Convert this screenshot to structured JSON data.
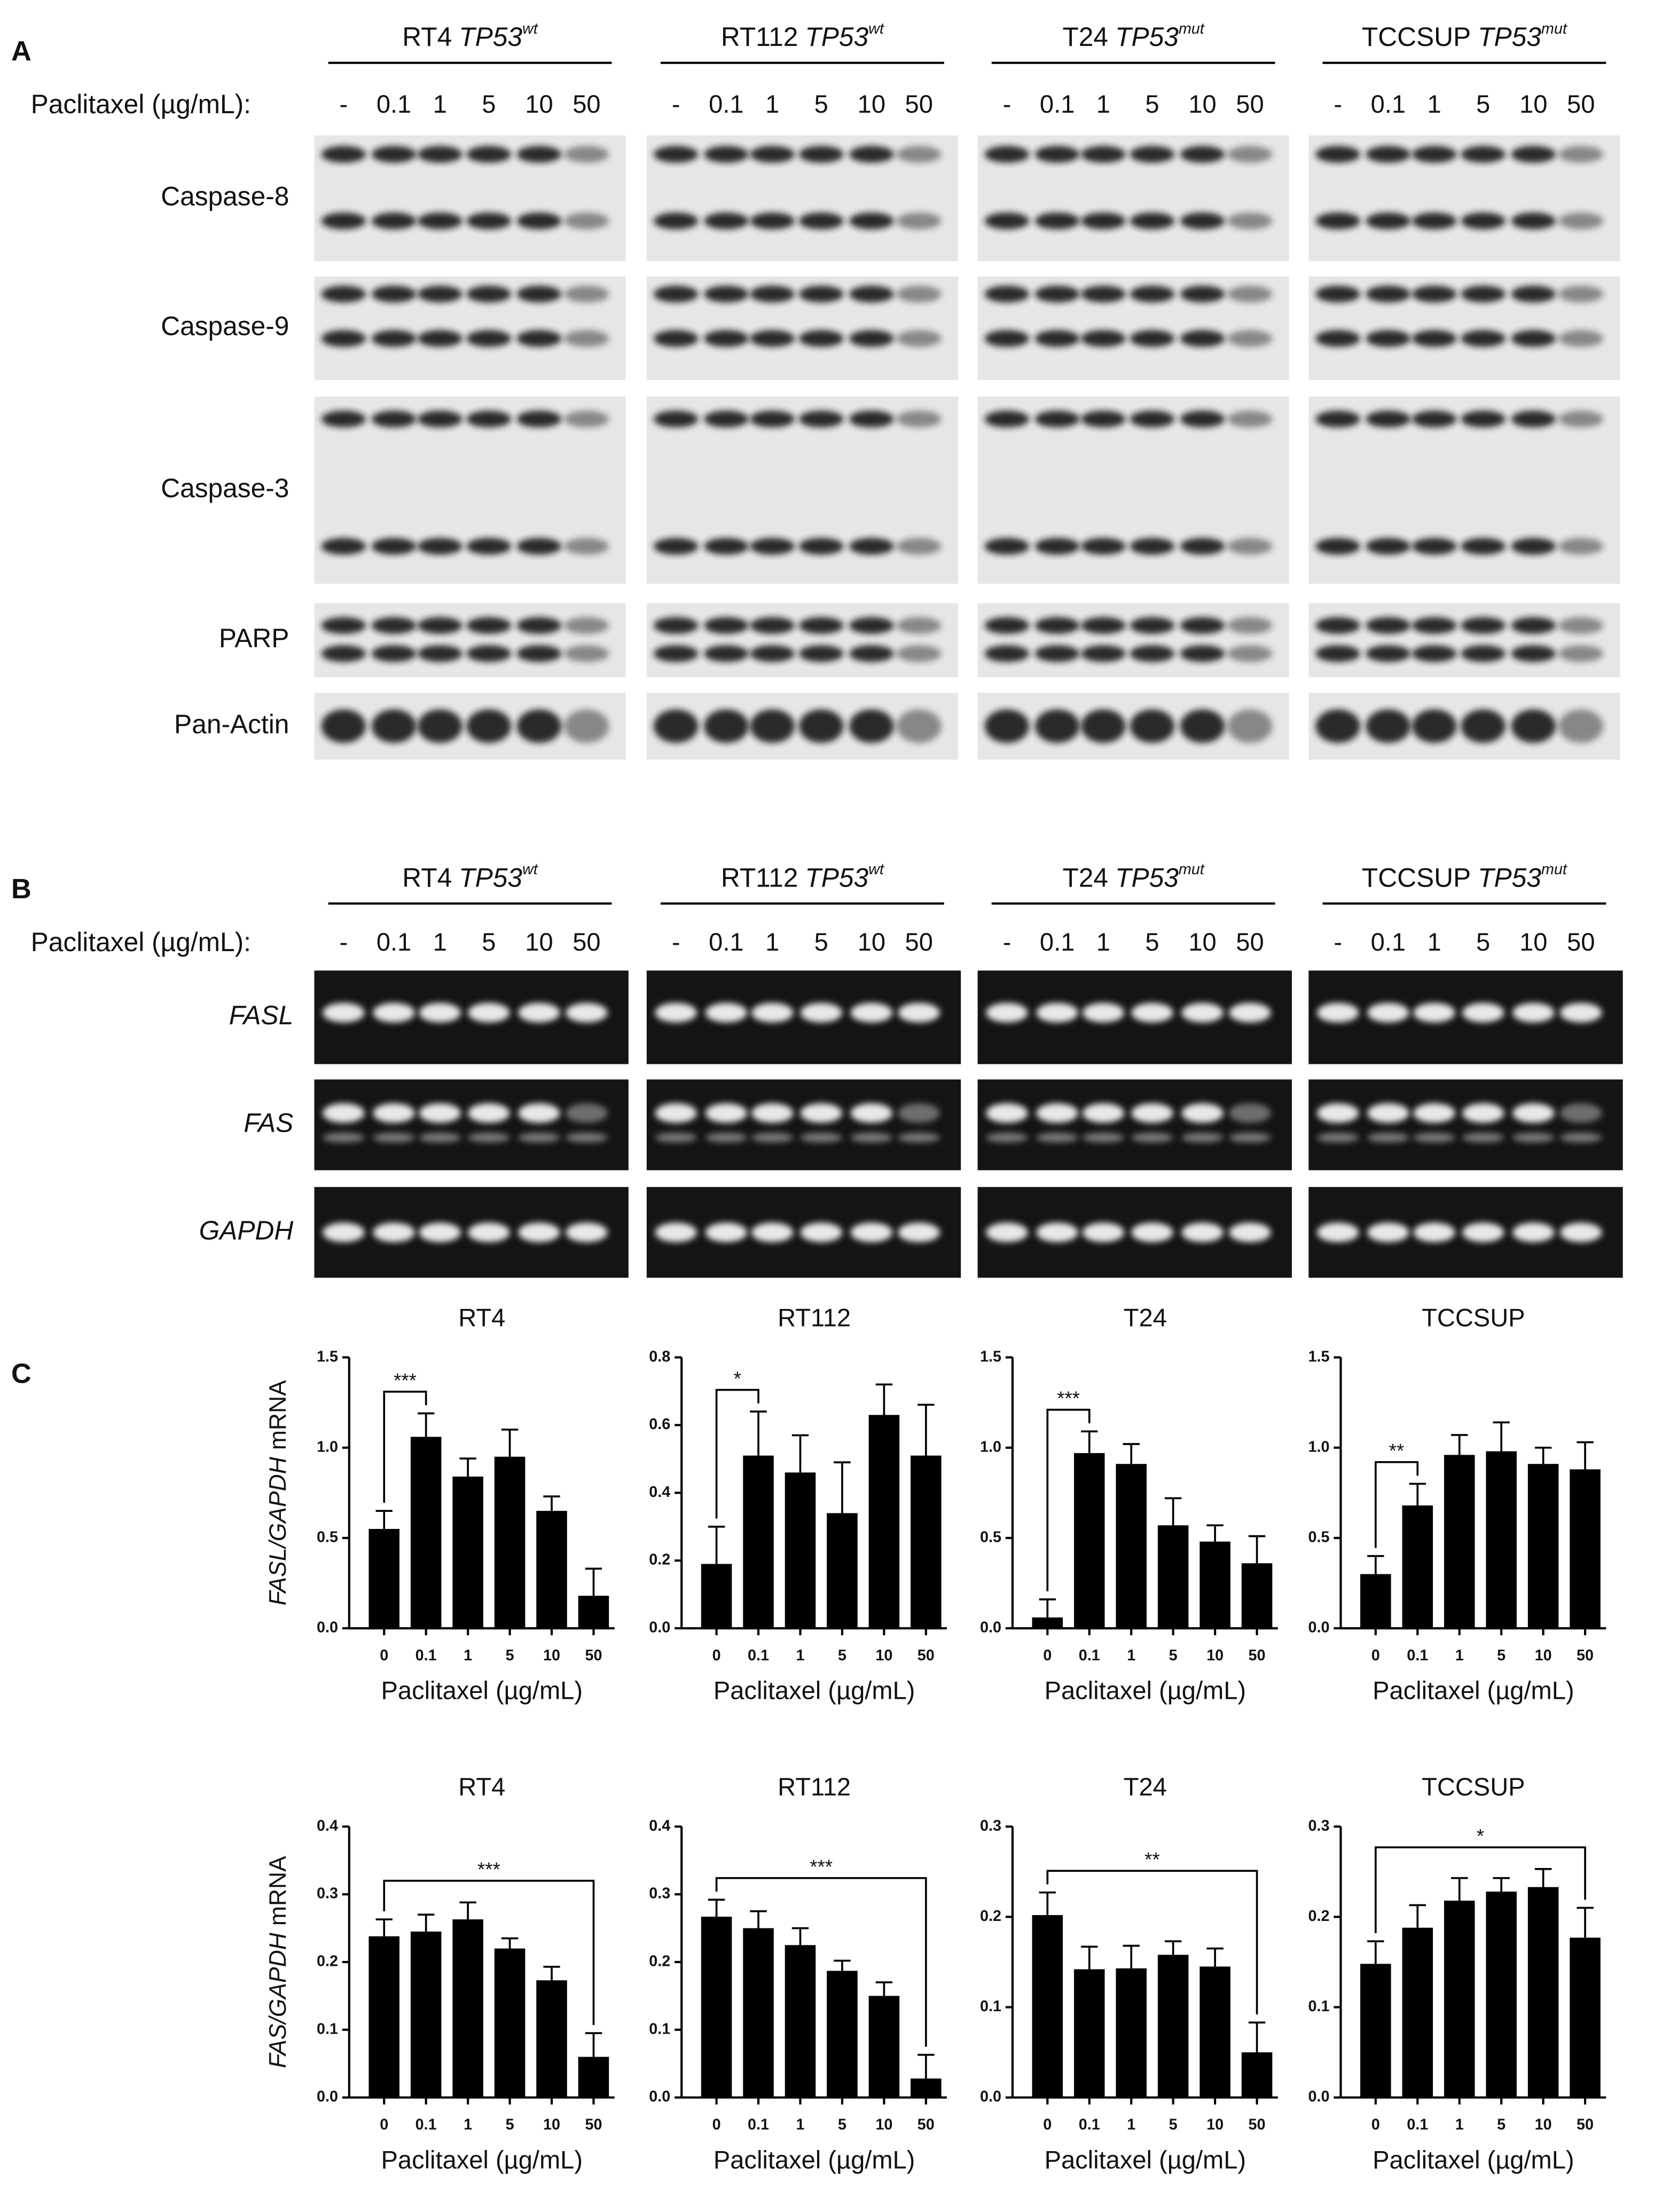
{
  "panel_labels": [
    "A",
    "B",
    "C"
  ],
  "panel_A": {
    "cell_lines": [
      {
        "name": "RT4",
        "gene": "TP53",
        "status": "wt"
      },
      {
        "name": "RT112",
        "gene": "TP53",
        "status": "wt"
      },
      {
        "name": "T24",
        "gene": "TP53",
        "status": "mut"
      },
      {
        "name": "TCCSUP",
        "gene": "TP53",
        "status": "mut"
      }
    ],
    "treatment_label": "Paclitaxel (µg/mL):",
    "doses": [
      "-",
      "0.1",
      "1",
      "5",
      "10",
      "50"
    ],
    "proteins": [
      "Caspase-8",
      "Caspase-9",
      "Caspase-3",
      "PARP",
      "Pan-Actin"
    ]
  },
  "panel_B": {
    "cell_lines": [
      {
        "name": "RT4",
        "gene": "TP53",
        "status": "wt"
      },
      {
        "name": "RT112",
        "gene": "TP53",
        "status": "wt"
      },
      {
        "name": "T24",
        "gene": "TP53",
        "status": "mut"
      },
      {
        "name": "TCCSUP",
        "gene": "TP53",
        "status": "mut"
      }
    ],
    "treatment_label": "Paclitaxel (µg/mL):",
    "doses": [
      "-",
      "0.1",
      "1",
      "5",
      "10",
      "50"
    ],
    "genes": [
      "FASL",
      "FAS",
      "GAPDH"
    ]
  },
  "chart_data": [
    {
      "type": "bar",
      "title": "RT4",
      "ylabel": "FASL/GAPDH",
      "ylabel_suffix": "mRNA",
      "xlabel": "Paclitaxel (µg/mL)",
      "categories": [
        "0",
        "0.1",
        "1",
        "5",
        "10",
        "50"
      ],
      "values": [
        0.55,
        1.06,
        0.84,
        0.95,
        0.65,
        0.18
      ],
      "errors": [
        0.1,
        0.13,
        0.1,
        0.15,
        0.08,
        0.15
      ],
      "color": "#000000",
      "ylim": [
        0,
        1.5
      ],
      "yticks": [
        {
          "value": 0,
          "label": "0.0"
        },
        0.5,
        {
          "value": 1,
          "label": "1.0"
        },
        1.5
      ],
      "significance": {
        "label": "***",
        "from": 0,
        "to": 1
      }
    },
    {
      "type": "bar",
      "title": "RT112",
      "xlabel": "Paclitaxel (µg/mL)",
      "categories": [
        "0",
        "0.1",
        "1",
        "5",
        "10",
        "50"
      ],
      "values": [
        0.19,
        0.51,
        0.46,
        0.34,
        0.63,
        0.51
      ],
      "errors": [
        0.11,
        0.13,
        0.11,
        0.15,
        0.09,
        0.15
      ],
      "color": "#000000",
      "ylim": [
        0,
        0.8
      ],
      "yticks": [
        {
          "value": 0,
          "label": "0.0"
        },
        0.2,
        0.4,
        0.6,
        0.8
      ],
      "significance": {
        "label": "*",
        "from": 0,
        "to": 1
      }
    },
    {
      "type": "bar",
      "title": "T24",
      "xlabel": "Paclitaxel (µg/mL)",
      "categories": [
        "0",
        "0.1",
        "1",
        "5",
        "10",
        "50"
      ],
      "values": [
        0.06,
        0.97,
        0.91,
        0.57,
        0.48,
        0.36
      ],
      "errors": [
        0.1,
        0.12,
        0.11,
        0.15,
        0.09,
        0.15
      ],
      "color": "#000000",
      "ylim": [
        0,
        1.5
      ],
      "yticks": [
        {
          "value": 0,
          "label": "0.0"
        },
        0.5,
        {
          "value": 1,
          "label": "1.0"
        },
        1.5
      ],
      "significance": {
        "label": "***",
        "from": 0,
        "to": 1
      }
    },
    {
      "type": "bar",
      "title": "TCCSUP",
      "xlabel": "Paclitaxel (µg/mL)",
      "categories": [
        "0",
        "0.1",
        "1",
        "5",
        "10",
        "50"
      ],
      "values": [
        0.3,
        0.68,
        0.96,
        0.98,
        0.91,
        0.88
      ],
      "errors": [
        0.1,
        0.12,
        0.11,
        0.16,
        0.09,
        0.15
      ],
      "color": "#000000",
      "ylim": [
        0,
        1.5
      ],
      "yticks": [
        {
          "value": 0,
          "label": "0.0"
        },
        0.5,
        {
          "value": 1,
          "label": "1.0"
        },
        1.5
      ],
      "significance": {
        "label": "**",
        "from": 0,
        "to": 1
      }
    },
    {
      "type": "bar",
      "title": "RT4",
      "ylabel": "FAS/GAPDH",
      "ylabel_suffix": "mRNA",
      "xlabel": "Paclitaxel (µg/mL)",
      "categories": [
        "0",
        "0.1",
        "1",
        "5",
        "10",
        "50"
      ],
      "values": [
        0.238,
        0.245,
        0.263,
        0.22,
        0.173,
        0.06
      ],
      "errors": [
        0.025,
        0.025,
        0.025,
        0.015,
        0.02,
        0.035
      ],
      "color": "#000000",
      "ylim": [
        0,
        0.4
      ],
      "yticks": [
        {
          "value": 0,
          "label": "0.0"
        },
        0.1,
        0.2,
        0.3,
        0.4
      ],
      "significance": {
        "label": "***",
        "from": 0,
        "to": 5
      }
    },
    {
      "type": "bar",
      "title": "RT112",
      "xlabel": "Paclitaxel (µg/mL)",
      "categories": [
        "0",
        "0.1",
        "1",
        "5",
        "10",
        "50"
      ],
      "values": [
        0.267,
        0.25,
        0.225,
        0.187,
        0.15,
        0.028
      ],
      "errors": [
        0.025,
        0.025,
        0.025,
        0.015,
        0.02,
        0.035
      ],
      "color": "#000000",
      "ylim": [
        0,
        0.4
      ],
      "yticks": [
        {
          "value": 0,
          "label": "0.0"
        },
        0.1,
        0.2,
        0.3,
        0.4
      ],
      "significance": {
        "label": "***",
        "from": 0,
        "to": 5
      }
    },
    {
      "type": "bar",
      "title": "T24",
      "xlabel": "Paclitaxel (µg/mL)",
      "categories": [
        "0",
        "0.1",
        "1",
        "5",
        "10",
        "50"
      ],
      "values": [
        0.202,
        0.142,
        0.143,
        0.158,
        0.145,
        0.05
      ],
      "errors": [
        0.025,
        0.025,
        0.025,
        0.015,
        0.02,
        0.033
      ],
      "color": "#000000",
      "ylim": [
        0,
        0.3
      ],
      "yticks": [
        {
          "value": 0,
          "label": "0.0"
        },
        0.1,
        0.2,
        0.3
      ],
      "significance": {
        "label": "**",
        "from": 0,
        "to": 5
      }
    },
    {
      "type": "bar",
      "title": "TCCSUP",
      "xlabel": "Paclitaxel (µg/mL)",
      "categories": [
        "0",
        "0.1",
        "1",
        "5",
        "10",
        "50"
      ],
      "values": [
        0.148,
        0.188,
        0.218,
        0.228,
        0.233,
        0.177
      ],
      "errors": [
        0.025,
        0.025,
        0.025,
        0.015,
        0.02,
        0.033
      ],
      "color": "#000000",
      "ylim": [
        0,
        0.3
      ],
      "yticks": [
        {
          "value": 0,
          "label": "0.0"
        },
        0.1,
        0.2,
        0.3
      ],
      "significance": {
        "label": "*",
        "from": 0,
        "to": 5
      }
    }
  ]
}
